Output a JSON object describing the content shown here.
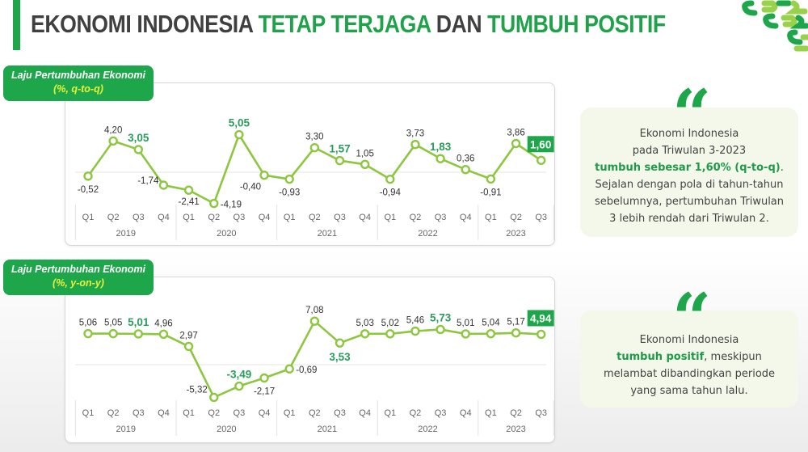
{
  "header": {
    "title_part1": "EKONOMI INDONESIA ",
    "title_part2": "TETAP TERJAGA",
    "title_part3": " DAN ",
    "title_part4": "TUMBUH POSITIF",
    "accent_color": "#1ea64a"
  },
  "logo": {
    "icon": "bps-logo-icon"
  },
  "qtq_panel": {
    "tag_line1": "Laju Pertumbuhan Ekonomi",
    "tag_line2": "(%, q-to-q)"
  },
  "yoy_panel": {
    "tag_line1": "Laju Pertumbuhan Ekonomi",
    "tag_line2": "(%, y-on-y)"
  },
  "quote1": {
    "line1": "Ekonomi Indonesia",
    "line2": "pada Triwulan 3-2023",
    "highlight": "tumbuh sebesar 1,60% (q-to-q)",
    "after_highlight": ".",
    "line4": "Sejalan dengan pola di tahun-tahun",
    "line5": "sebelumnya, pertumbuhan Triwulan",
    "line6": "3 lebih rendah dari Triwulan 2."
  },
  "quote2": {
    "line1": "Ekonomi Indonesia",
    "highlight": "tumbuh positif",
    "after_highlight": ", meskipun",
    "line3": "melambat dibandingkan periode",
    "line4": "yang sama tahun lalu."
  },
  "chart_data": [
    {
      "type": "line",
      "title": "Laju Pertumbuhan Ekonomi (%, q-to-q)",
      "xlabel": "",
      "ylabel": "%",
      "categories": [
        "Q1 2019",
        "Q2 2019",
        "Q3 2019",
        "Q4 2019",
        "Q1 2020",
        "Q2 2020",
        "Q3 2020",
        "Q4 2020",
        "Q1 2021",
        "Q2 2021",
        "Q3 2021",
        "Q4 2021",
        "Q1 2022",
        "Q2 2022",
        "Q3 2022",
        "Q4 2022",
        "Q1 2023",
        "Q2 2023",
        "Q3 2023"
      ],
      "quarter_labels": [
        "Q1",
        "Q2",
        "Q3",
        "Q4",
        "Q1",
        "Q2",
        "Q3",
        "Q4",
        "Q1",
        "Q2",
        "Q3",
        "Q4",
        "Q1",
        "Q2",
        "Q3",
        "Q4",
        "Q1",
        "Q2",
        "Q3"
      ],
      "years": [
        "2019",
        "2020",
        "2021",
        "2022",
        "2023"
      ],
      "values": [
        -0.52,
        4.2,
        3.05,
        -1.74,
        -2.41,
        -4.19,
        5.05,
        -0.4,
        -0.93,
        3.3,
        1.57,
        1.05,
        -0.94,
        3.73,
        1.83,
        0.36,
        -0.91,
        3.86,
        1.6
      ],
      "labels": [
        "-0,52",
        "4,20",
        "3,05",
        "-1,74",
        "-2,41",
        "-4,19",
        "5,05",
        "-0,40",
        "-0,93",
        "3,30",
        "1,57",
        "1,05",
        "-0,94",
        "3,73",
        "1,83",
        "0,36",
        "-0,91",
        "3,86",
        "1,60"
      ],
      "highlighted_indices": [
        2,
        6,
        10,
        14
      ],
      "boxed_index": 18,
      "line_color": "#8dc63f",
      "grid": false
    },
    {
      "type": "line",
      "title": "Laju Pertumbuhan Ekonomi (%, y-on-y)",
      "xlabel": "",
      "ylabel": "%",
      "categories": [
        "Q1 2019",
        "Q2 2019",
        "Q3 2019",
        "Q4 2019",
        "Q1 2020",
        "Q2 2020",
        "Q3 2020",
        "Q4 2020",
        "Q1 2021",
        "Q2 2021",
        "Q3 2021",
        "Q4 2021",
        "Q1 2022",
        "Q2 2022",
        "Q3 2022",
        "Q4 2022",
        "Q1 2023",
        "Q2 2023",
        "Q3 2023"
      ],
      "quarter_labels": [
        "Q1",
        "Q2",
        "Q3",
        "Q4",
        "Q1",
        "Q2",
        "Q3",
        "Q4",
        "Q1",
        "Q2",
        "Q3",
        "Q4",
        "Q1",
        "Q2",
        "Q3",
        "Q4",
        "Q1",
        "Q2",
        "Q3"
      ],
      "years": [
        "2019",
        "2020",
        "2021",
        "2022",
        "2023"
      ],
      "values": [
        5.06,
        5.05,
        5.01,
        4.96,
        2.97,
        -5.32,
        -3.49,
        -2.17,
        -0.69,
        7.08,
        3.53,
        5.03,
        5.02,
        5.46,
        5.73,
        5.01,
        5.04,
        5.17,
        4.94
      ],
      "labels": [
        "5,06",
        "5,05",
        "5,01",
        "4,96",
        "2,97",
        "-5,32",
        "-3,49",
        "-2,17",
        "-0,69",
        "7,08",
        "3,53",
        "5,03",
        "5,02",
        "5,46",
        "5,73",
        "5,01",
        "5,04",
        "5,17",
        "4,94"
      ],
      "highlighted_indices": [
        2,
        6,
        10,
        14
      ],
      "boxed_index": 18,
      "line_color": "#8dc63f",
      "grid": false
    }
  ]
}
